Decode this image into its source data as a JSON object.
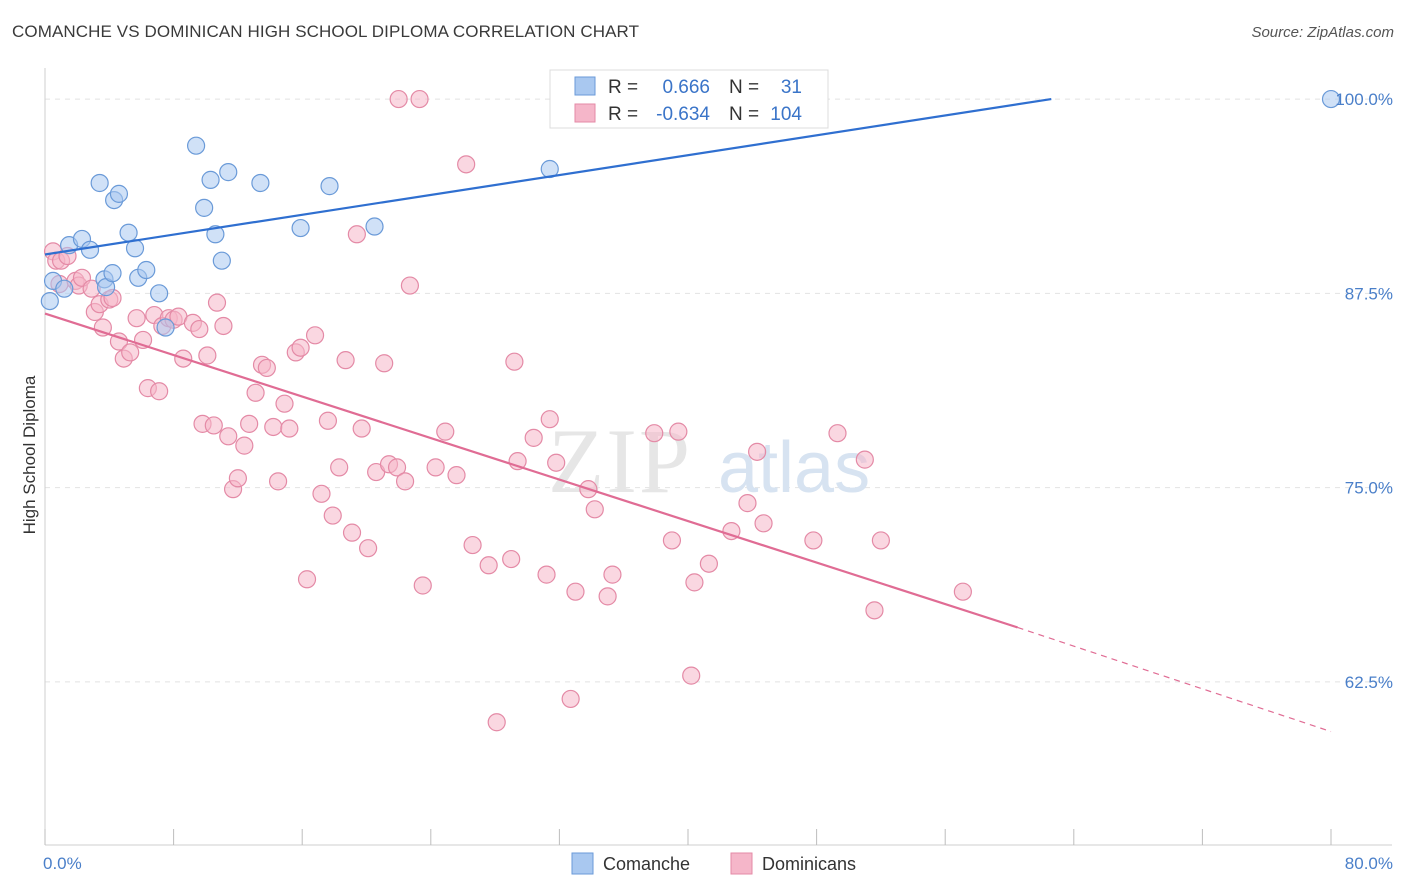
{
  "header": {
    "title": "COMANCHE VS DOMINICAN HIGH SCHOOL DIPLOMA CORRELATION CHART",
    "source": "Source: ZipAtlas.com"
  },
  "watermark": {
    "zip": "ZIP",
    "atlas": "atlas"
  },
  "colors": {
    "comanche_fill": "#a9c8f0",
    "comanche_stroke": "#6a9ad8",
    "comanche_line": "#2f6fd0",
    "dominican_fill": "#f5b6c9",
    "dominican_stroke": "#e48aa6",
    "dominican_line": "#e06c94",
    "tick_text": "#4a7fc9",
    "grid": "#e2e2e2"
  },
  "legend_top": {
    "rows": [
      {
        "r_label": "R =",
        "r_value": "0.666",
        "n_label": "N =",
        "n_value": "31",
        "series": "Comanche"
      },
      {
        "r_label": "R =",
        "r_value": "-0.634",
        "n_label": "N =",
        "n_value": "104",
        "series": "Dominicans"
      }
    ]
  },
  "chart_data": {
    "type": "scatter",
    "title": "COMANCHE VS DOMINICAN HIGH SCHOOL DIPLOMA CORRELATION CHART",
    "xlabel": "",
    "ylabel": "High School Diploma",
    "xlim": [
      0,
      80
    ],
    "ylim": [
      52,
      102
    ],
    "x_tick_labels": [
      "0.0%",
      "80.0%"
    ],
    "y_ticks": [
      {
        "value": 100,
        "label": "100.0%"
      },
      {
        "value": 87.5,
        "label": "87.5%"
      },
      {
        "value": 75,
        "label": "75.0%"
      },
      {
        "value": 62.5,
        "label": "62.5%"
      }
    ],
    "grid": true,
    "legend_position": "bottom-center",
    "series": [
      {
        "name": "Comanche",
        "color": "#a9c8f0",
        "trend": {
          "x": [
            0,
            62.6
          ],
          "y": [
            90.0,
            100.0
          ]
        },
        "points": [
          [
            0.3,
            87.0
          ],
          [
            0.5,
            88.3
          ],
          [
            1.2,
            87.8
          ],
          [
            1.5,
            90.6
          ],
          [
            2.3,
            91.0
          ],
          [
            2.8,
            90.3
          ],
          [
            3.4,
            94.6
          ],
          [
            3.7,
            88.4
          ],
          [
            3.8,
            87.9
          ],
          [
            4.2,
            88.8
          ],
          [
            4.3,
            93.5
          ],
          [
            4.6,
            93.9
          ],
          [
            5.2,
            91.4
          ],
          [
            5.6,
            90.4
          ],
          [
            5.8,
            88.5
          ],
          [
            6.3,
            89.0
          ],
          [
            7.1,
            87.5
          ],
          [
            7.5,
            85.3
          ],
          [
            9.4,
            97.0
          ],
          [
            9.9,
            93.0
          ],
          [
            10.3,
            94.8
          ],
          [
            10.6,
            91.3
          ],
          [
            11.0,
            89.6
          ],
          [
            11.4,
            95.3
          ],
          [
            13.4,
            94.6
          ],
          [
            15.9,
            91.7
          ],
          [
            17.7,
            94.4
          ],
          [
            20.5,
            91.8
          ],
          [
            31.4,
            95.5
          ],
          [
            33.2,
            100.1
          ],
          [
            80.0,
            100.0
          ]
        ]
      },
      {
        "name": "Dominicans",
        "color": "#f5b6c9",
        "trend": {
          "x": [
            0,
            60.5
          ],
          "y": [
            86.2,
            66.0
          ]
        },
        "trend_dashed": {
          "x": [
            60.5,
            80.0
          ],
          "y": [
            66.0,
            59.3
          ]
        },
        "points": [
          [
            0.5,
            90.2
          ],
          [
            0.7,
            89.6
          ],
          [
            0.9,
            88.1
          ],
          [
            1.0,
            89.6
          ],
          [
            1.4,
            89.9
          ],
          [
            1.9,
            88.3
          ],
          [
            2.1,
            88.0
          ],
          [
            2.3,
            88.5
          ],
          [
            2.9,
            87.8
          ],
          [
            3.1,
            86.3
          ],
          [
            3.4,
            86.8
          ],
          [
            3.6,
            85.3
          ],
          [
            4.0,
            87.1
          ],
          [
            4.2,
            87.2
          ],
          [
            4.6,
            84.4
          ],
          [
            4.9,
            83.3
          ],
          [
            5.3,
            83.7
          ],
          [
            5.7,
            85.9
          ],
          [
            6.1,
            84.5
          ],
          [
            6.4,
            81.4
          ],
          [
            6.8,
            86.1
          ],
          [
            7.1,
            81.2
          ],
          [
            7.3,
            85.4
          ],
          [
            7.7,
            85.9
          ],
          [
            8.0,
            85.8
          ],
          [
            8.3,
            86.0
          ],
          [
            8.6,
            83.3
          ],
          [
            9.2,
            85.6
          ],
          [
            9.6,
            85.2
          ],
          [
            9.8,
            79.1
          ],
          [
            10.1,
            83.5
          ],
          [
            10.5,
            79.0
          ],
          [
            10.7,
            86.9
          ],
          [
            11.1,
            85.4
          ],
          [
            11.4,
            78.3
          ],
          [
            11.7,
            74.9
          ],
          [
            12.0,
            75.6
          ],
          [
            12.4,
            77.7
          ],
          [
            12.7,
            79.1
          ],
          [
            13.1,
            81.1
          ],
          [
            13.5,
            82.9
          ],
          [
            13.8,
            82.7
          ],
          [
            14.2,
            78.9
          ],
          [
            14.5,
            75.4
          ],
          [
            14.9,
            80.4
          ],
          [
            15.2,
            78.8
          ],
          [
            15.6,
            83.7
          ],
          [
            15.9,
            84.0
          ],
          [
            16.3,
            69.1
          ],
          [
            16.8,
            84.8
          ],
          [
            17.2,
            74.6
          ],
          [
            17.6,
            79.3
          ],
          [
            17.9,
            73.2
          ],
          [
            18.3,
            76.3
          ],
          [
            18.7,
            83.2
          ],
          [
            19.1,
            72.1
          ],
          [
            19.4,
            91.3
          ],
          [
            19.7,
            78.8
          ],
          [
            20.1,
            71.1
          ],
          [
            20.6,
            76.0
          ],
          [
            21.1,
            83.0
          ],
          [
            21.4,
            76.5
          ],
          [
            21.9,
            76.3
          ],
          [
            22.0,
            100.0
          ],
          [
            22.4,
            75.4
          ],
          [
            22.7,
            88.0
          ],
          [
            23.3,
            100.0
          ],
          [
            23.5,
            68.7
          ],
          [
            24.3,
            76.3
          ],
          [
            24.9,
            78.6
          ],
          [
            25.6,
            75.8
          ],
          [
            26.2,
            95.8
          ],
          [
            26.6,
            71.3
          ],
          [
            27.6,
            70.0
          ],
          [
            28.1,
            59.9
          ],
          [
            29.0,
            70.4
          ],
          [
            29.2,
            83.1
          ],
          [
            29.4,
            76.7
          ],
          [
            30.4,
            78.2
          ],
          [
            31.2,
            69.4
          ],
          [
            31.4,
            79.4
          ],
          [
            31.8,
            76.6
          ],
          [
            32.7,
            61.4
          ],
          [
            33.0,
            68.3
          ],
          [
            33.8,
            74.9
          ],
          [
            34.2,
            73.6
          ],
          [
            35.0,
            68.0
          ],
          [
            35.3,
            69.4
          ],
          [
            37.9,
            78.5
          ],
          [
            39.0,
            71.6
          ],
          [
            39.4,
            78.6
          ],
          [
            40.2,
            62.9
          ],
          [
            40.4,
            68.9
          ],
          [
            41.3,
            70.1
          ],
          [
            42.7,
            72.2
          ],
          [
            43.7,
            74.0
          ],
          [
            44.3,
            77.3
          ],
          [
            44.7,
            72.7
          ],
          [
            47.8,
            71.6
          ],
          [
            49.3,
            78.5
          ],
          [
            51.0,
            76.8
          ],
          [
            51.6,
            67.1
          ],
          [
            52.0,
            71.6
          ],
          [
            57.1,
            68.3
          ]
        ]
      }
    ]
  }
}
